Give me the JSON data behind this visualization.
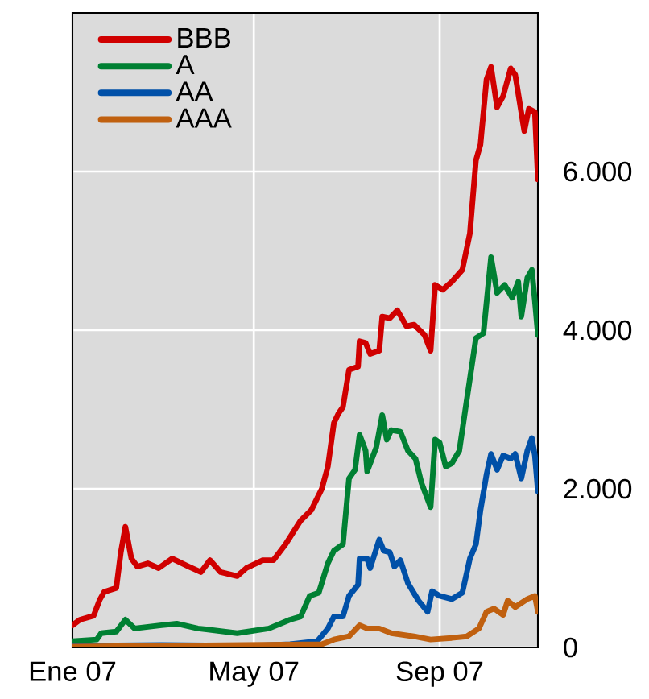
{
  "chart_data": {
    "type": "line",
    "grid": true,
    "legend": "top left",
    "xlim": [
      "2007-01-01",
      "2007-11-05"
    ],
    "xticks": [
      {
        "value": "2007-01-01",
        "label": "Ene 07"
      },
      {
        "value": "2007-05-01",
        "label": "May 07"
      },
      {
        "value": "2007-09-01",
        "label": "Sep 07"
      }
    ],
    "ylim": [
      0,
      8000
    ],
    "yticks": [
      0,
      {
        "value": 2000,
        "label": "2.000"
      },
      {
        "value": 4000,
        "label": "4.000"
      },
      {
        "value": 6000,
        "label": "6.000"
      }
    ],
    "series": [
      {
        "name": "BBB",
        "color": "#d00000",
        "x": [
          "2007-01-01",
          "2007-01-06",
          "2007-01-15",
          "2007-01-19",
          "2007-01-22",
          "2007-01-30",
          "2007-02-02",
          "2007-02-05",
          "2007-02-09",
          "2007-02-13",
          "2007-02-20",
          "2007-02-27",
          "2007-03-08",
          "2007-03-19",
          "2007-03-27",
          "2007-04-02",
          "2007-04-09",
          "2007-04-20",
          "2007-04-26",
          "2007-05-07",
          "2007-05-14",
          "2007-05-22",
          "2007-06-01",
          "2007-06-08",
          "2007-06-15",
          "2007-06-19",
          "2007-06-23",
          "2007-06-26",
          "2007-06-29",
          "2007-07-03",
          "2007-07-09",
          "2007-07-10",
          "2007-07-14",
          "2007-07-17",
          "2007-07-23",
          "2007-07-25",
          "2007-07-30",
          "2007-08-04",
          "2007-08-10",
          "2007-08-15",
          "2007-08-22",
          "2007-08-26",
          "2007-08-29",
          "2007-09-03",
          "2007-09-09",
          "2007-09-16",
          "2007-09-21",
          "2007-09-25",
          "2007-09-28",
          "2007-10-02",
          "2007-10-05",
          "2007-10-09",
          "2007-10-13",
          "2007-10-18",
          "2007-10-21",
          "2007-10-27",
          "2007-10-30",
          "2007-11-03",
          "2007-11-05"
        ],
        "values": [
          280,
          350,
          400,
          600,
          700,
          750,
          1200,
          1520,
          1120,
          1020,
          1060,
          1000,
          1120,
          1020,
          950,
          1100,
          950,
          900,
          1000,
          1100,
          1100,
          1300,
          1600,
          1730,
          2000,
          2280,
          2830,
          2950,
          3030,
          3500,
          3540,
          3860,
          3840,
          3700,
          3740,
          4170,
          4150,
          4250,
          4050,
          4070,
          3940,
          3740,
          4570,
          4510,
          4610,
          4760,
          5220,
          6140,
          6340,
          7160,
          7320,
          6810,
          6950,
          7300,
          7220,
          6510,
          6790,
          6750,
          5900
        ]
      },
      {
        "name": "A",
        "color": "#008033",
        "x": [
          "2007-01-01",
          "2007-01-17",
          "2007-01-20",
          "2007-01-30",
          "2007-02-05",
          "2007-02-11",
          "2007-03-01",
          "2007-03-11",
          "2007-03-25",
          "2007-04-20",
          "2007-05-11",
          "2007-05-25",
          "2007-06-01",
          "2007-06-07",
          "2007-06-13",
          "2007-06-19",
          "2007-06-23",
          "2007-06-29",
          "2007-07-03",
          "2007-07-07",
          "2007-07-10",
          "2007-07-14",
          "2007-07-15",
          "2007-07-21",
          "2007-07-25",
          "2007-07-28",
          "2007-07-31",
          "2007-08-06",
          "2007-08-11",
          "2007-08-16",
          "2007-08-20",
          "2007-08-26",
          "2007-08-29",
          "2007-09-01",
          "2007-09-05",
          "2007-09-09",
          "2007-09-14",
          "2007-09-19",
          "2007-09-25",
          "2007-09-30",
          "2007-10-05",
          "2007-10-09",
          "2007-10-14",
          "2007-10-19",
          "2007-10-23",
          "2007-10-25",
          "2007-10-29",
          "2007-11-01",
          "2007-11-03",
          "2007-11-05"
        ],
        "values": [
          80,
          100,
          180,
          200,
          350,
          240,
          280,
          300,
          240,
          180,
          240,
          350,
          390,
          650,
          690,
          1060,
          1220,
          1300,
          2130,
          2240,
          2680,
          2480,
          2220,
          2520,
          2930,
          2620,
          2740,
          2720,
          2480,
          2380,
          2070,
          1770,
          2620,
          2580,
          2280,
          2320,
          2480,
          3130,
          3900,
          3960,
          4920,
          4470,
          4570,
          4410,
          4610,
          4170,
          4660,
          4760,
          4370,
          3940
        ]
      },
      {
        "name": "AA",
        "color": "#0050a8",
        "x": [
          "2007-01-01",
          "2007-03-01",
          "2007-05-01",
          "2007-05-25",
          "2007-06-12",
          "2007-06-19",
          "2007-06-23",
          "2007-06-29",
          "2007-07-03",
          "2007-07-09",
          "2007-07-10",
          "2007-07-15",
          "2007-07-17",
          "2007-07-23",
          "2007-07-26",
          "2007-07-30",
          "2007-08-02",
          "2007-08-06",
          "2007-08-11",
          "2007-08-18",
          "2007-08-24",
          "2007-08-27",
          "2007-09-01",
          "2007-09-09",
          "2007-09-16",
          "2007-09-21",
          "2007-09-25",
          "2007-09-28",
          "2007-10-02",
          "2007-10-05",
          "2007-10-09",
          "2007-10-13",
          "2007-10-18",
          "2007-10-21",
          "2007-10-25",
          "2007-10-29",
          "2007-11-01",
          "2007-11-03",
          "2007-11-05"
        ],
        "values": [
          20,
          30,
          20,
          40,
          80,
          240,
          390,
          390,
          650,
          790,
          1120,
          1120,
          1000,
          1360,
          1220,
          1200,
          1020,
          1100,
          810,
          590,
          450,
          710,
          650,
          610,
          690,
          1120,
          1300,
          1730,
          2180,
          2440,
          2240,
          2420,
          2380,
          2440,
          2130,
          2480,
          2640,
          2420,
          1970
        ]
      },
      {
        "name": "AAA",
        "color": "#c0600f",
        "x": [
          "2007-01-01",
          "2007-06-15",
          "2007-06-23",
          "2007-07-03",
          "2007-07-10",
          "2007-07-15",
          "2007-07-23",
          "2007-07-31",
          "2007-08-15",
          "2007-08-26",
          "2007-09-09",
          "2007-09-19",
          "2007-09-27",
          "2007-10-02",
          "2007-10-07",
          "2007-10-13",
          "2007-10-16",
          "2007-10-21",
          "2007-10-29",
          "2007-11-03",
          "2007-11-05"
        ],
        "values": [
          10,
          40,
          100,
          140,
          280,
          240,
          240,
          180,
          140,
          100,
          120,
          140,
          240,
          450,
          490,
          410,
          590,
          510,
          610,
          650,
          450
        ]
      }
    ]
  }
}
